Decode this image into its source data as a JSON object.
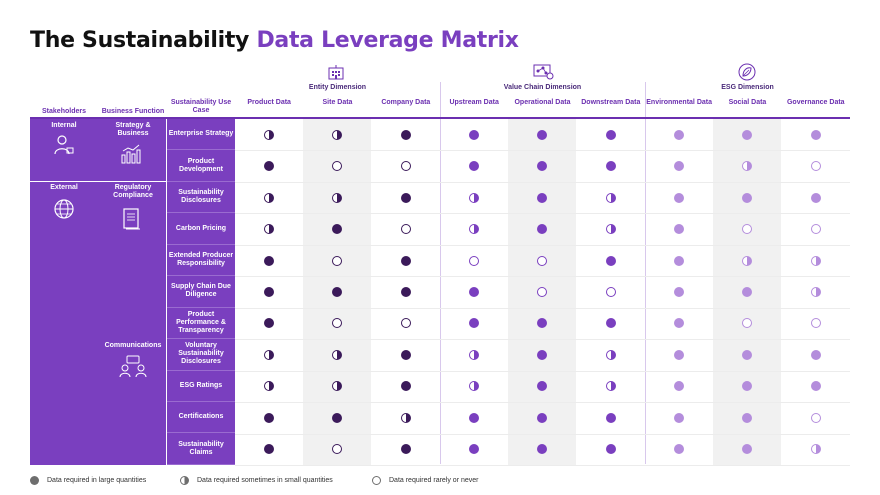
{
  "title": {
    "part1": "The Sustainability",
    "part2": "Data Leverage Matrix"
  },
  "dimensions": [
    {
      "label": "Entity Dimension",
      "icon": "building-icon"
    },
    {
      "label": "Value Chain Dimension",
      "icon": "network-icon"
    },
    {
      "label": "ESG Dimension",
      "icon": "leaf-icon"
    }
  ],
  "headers": {
    "stakeholders": "Stakeholders",
    "business_function": "Business Function",
    "use_case": "Sustainability Use Case",
    "columns": [
      "Product Data",
      "Site Data",
      "Company Data",
      "Upstream Data",
      "Operational Data",
      "Downstream Data",
      "Environmental Data",
      "Social Data",
      "Governance Data"
    ]
  },
  "stakeholders": [
    {
      "label": "Internal",
      "icon": "person-icon"
    },
    {
      "label": "External",
      "icon": "globe-icon"
    }
  ],
  "business_functions": [
    {
      "label": "Strategy & Business",
      "icon": "bar-chart-icon"
    },
    {
      "label": "Regulatory Compliance",
      "icon": "document-icon"
    },
    {
      "label": "Communications",
      "icon": "people-chat-icon"
    }
  ],
  "rows": [
    {
      "label": "Enterprise Strategy",
      "values": [
        "half",
        "half",
        "full",
        "full",
        "full",
        "full",
        "full",
        "full",
        "full"
      ]
    },
    {
      "label": "Product Development",
      "values": [
        "full",
        "empty",
        "empty",
        "full",
        "full",
        "full",
        "full",
        "half",
        "empty"
      ]
    },
    {
      "label": "Sustainability Disclosures",
      "values": [
        "half",
        "half",
        "full",
        "half",
        "full",
        "half",
        "full",
        "full",
        "full"
      ]
    },
    {
      "label": "Carbon Pricing",
      "values": [
        "half",
        "full",
        "empty",
        "half",
        "full",
        "half",
        "full",
        "empty",
        "empty"
      ]
    },
    {
      "label": "Extended Producer Responsibility",
      "values": [
        "full",
        "empty",
        "full",
        "empty",
        "empty",
        "full",
        "full",
        "half",
        "half"
      ]
    },
    {
      "label": "Supply Chain Due Diligence",
      "values": [
        "full",
        "full",
        "full",
        "full",
        "empty",
        "empty",
        "full",
        "full",
        "half"
      ]
    },
    {
      "label": "Product Performance & Transparency",
      "values": [
        "full",
        "empty",
        "empty",
        "full",
        "full",
        "full",
        "full",
        "empty",
        "empty"
      ]
    },
    {
      "label": "Voluntary Sustainability Disclosures",
      "values": [
        "half",
        "half",
        "full",
        "half",
        "full",
        "half",
        "full",
        "full",
        "full"
      ]
    },
    {
      "label": "ESG Ratings",
      "values": [
        "half",
        "half",
        "full",
        "half",
        "full",
        "half",
        "full",
        "full",
        "full"
      ]
    },
    {
      "label": "Certifications",
      "values": [
        "full",
        "full",
        "half",
        "full",
        "full",
        "full",
        "full",
        "full",
        "empty"
      ]
    },
    {
      "label": "Sustainability Claims",
      "values": [
        "full",
        "empty",
        "full",
        "full",
        "full",
        "full",
        "full",
        "full",
        "half"
      ]
    }
  ],
  "legend": [
    {
      "key": "full",
      "label": "Data required in large quantities"
    },
    {
      "key": "half",
      "label": "Data required sometimes in small quantities"
    },
    {
      "key": "empty",
      "label": "Data required rarely or never"
    }
  ],
  "colors": {
    "entity": "#3b1a5a",
    "value_chain": "#7a3fbf",
    "esg": "#b48ddc",
    "brand": "#7a3fbf"
  }
}
